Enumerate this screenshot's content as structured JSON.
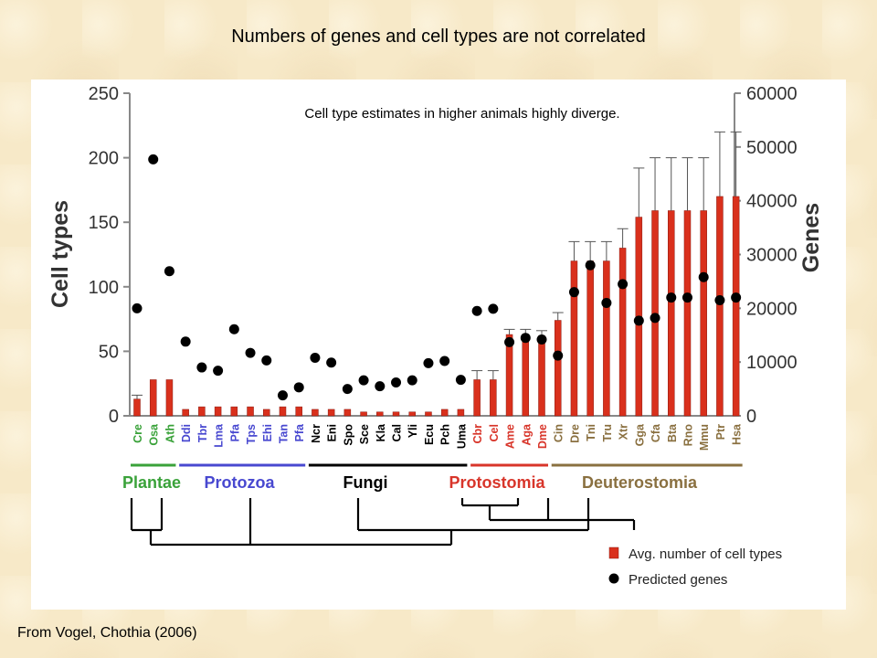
{
  "title": "Numbers of genes and cell types are not correlated",
  "footer": "From Vogel, Chothia (2006)",
  "colors": {
    "bar": "#d9301c",
    "dot": "#000000",
    "plantae": "#3aa23a",
    "protozoa": "#4848d0",
    "fungi": "#000000",
    "protostomia": "#d8352a",
    "deuterostomia": "#8a7040"
  },
  "chart_data": {
    "type": "bar",
    "annotation": "Cell type estimates in higher animals highly diverge.",
    "ylabel": "Cell types",
    "y2label": "Genes",
    "ylim": [
      0,
      250
    ],
    "y2lim": [
      0,
      60000
    ],
    "yticks": [
      "0",
      "50",
      "100",
      "150",
      "200",
      "250"
    ],
    "y2ticks": [
      "0",
      "10000",
      "20000",
      "30000",
      "40000",
      "50000",
      "60000"
    ],
    "grid": false,
    "legend_position": "bottom-right",
    "categories": [
      "Cre",
      "Osa",
      "Ath",
      "Ddi",
      "Tbr",
      "Lma",
      "Pfa",
      "Tps",
      "Ehi",
      "Tan",
      "Pfa",
      "Ncr",
      "Eni",
      "Spo",
      "Sce",
      "Kla",
      "Cal",
      "Yli",
      "Ecu",
      "Pch",
      "Uma",
      "Cbr",
      "Cel",
      "Ame",
      "Aga",
      "Dme",
      "Cin",
      "Dre",
      "Tni",
      "Tru",
      "Xtr",
      "Gga",
      "Cfa",
      "Bta",
      "Rno",
      "Mmu",
      "Ptr",
      "Hsa"
    ],
    "category_groups": [
      "Plantae",
      "Plantae",
      "Plantae",
      "Protozoa",
      "Protozoa",
      "Protozoa",
      "Protozoa",
      "Protozoa",
      "Protozoa",
      "Protozoa",
      "Protozoa",
      "Fungi",
      "Fungi",
      "Fungi",
      "Fungi",
      "Fungi",
      "Fungi",
      "Fungi",
      "Fungi",
      "Fungi",
      "Fungi",
      "Protostomia",
      "Protostomia",
      "Protostomia",
      "Protostomia",
      "Protostomia",
      "Deuterostomia",
      "Deuterostomia",
      "Deuterostomia",
      "Deuterostomia",
      "Deuterostomia",
      "Deuterostomia",
      "Deuterostomia",
      "Deuterostomia",
      "Deuterostomia",
      "Deuterostomia",
      "Deuterostomia",
      "Deuterostomia"
    ],
    "groups": [
      "Plantae",
      "Protozoa",
      "Fungi",
      "Protostomia",
      "Deuterostomia"
    ],
    "series": [
      {
        "name": "Avg. number of cell types",
        "axis": "left",
        "kind": "bar",
        "values": [
          13,
          28,
          28,
          5,
          7,
          7,
          7,
          7,
          5,
          7,
          7,
          5,
          5,
          5,
          3,
          3,
          3,
          3,
          3,
          5,
          5,
          28,
          28,
          63,
          63,
          62,
          74,
          120,
          120,
          120,
          130,
          154,
          159,
          159,
          159,
          159,
          170,
          170
        ],
        "error_upper": [
          16,
          28,
          28,
          5,
          7,
          7,
          7,
          7,
          5,
          7,
          7,
          5,
          5,
          5,
          3,
          3,
          3,
          3,
          3,
          5,
          5,
          35,
          35,
          67,
          67,
          66,
          80,
          135,
          135,
          135,
          145,
          192,
          200,
          200,
          200,
          200,
          220,
          220
        ]
      },
      {
        "name": "Predicted genes",
        "axis": "right",
        "kind": "scatter",
        "values": [
          20000,
          47700,
          26900,
          13800,
          9000,
          8400,
          16100,
          11700,
          10300,
          3800,
          5300,
          10800,
          9900,
          5000,
          6600,
          5500,
          6200,
          6600,
          9800,
          10200,
          6700,
          19500,
          19900,
          13700,
          14500,
          14200,
          11200,
          23000,
          28000,
          21000,
          24500,
          17700,
          18200,
          22000,
          22000,
          25800,
          21500,
          22000
        ]
      }
    ]
  }
}
